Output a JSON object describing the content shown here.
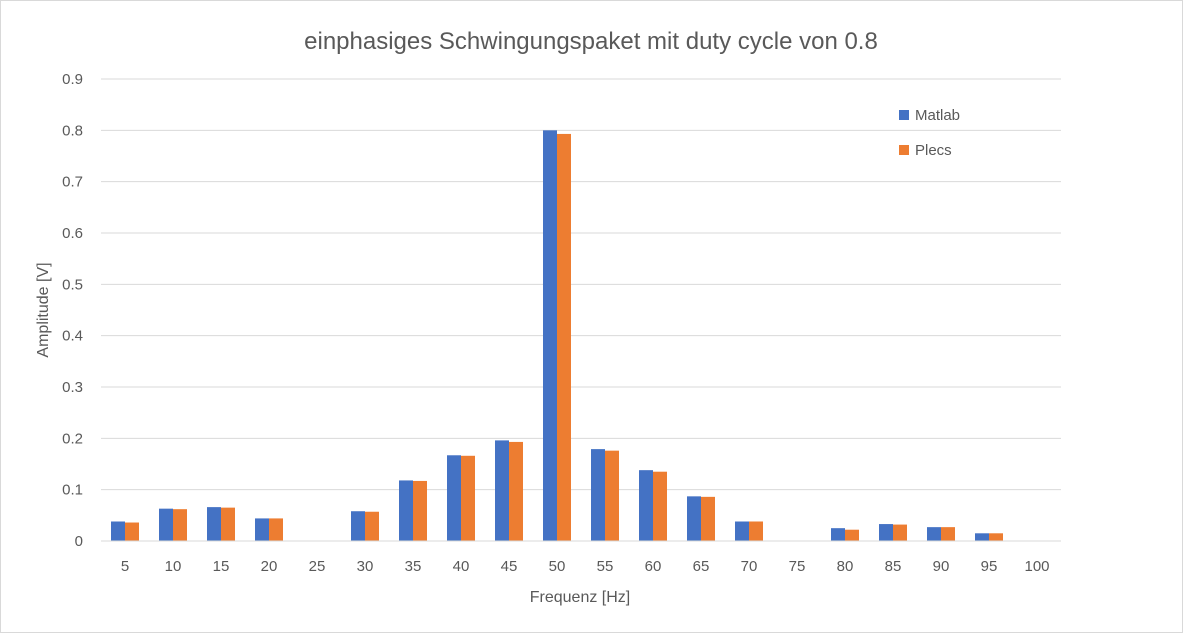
{
  "chart_data": {
    "type": "bar",
    "title": "einphasiges Schwingungspaket mit duty cycle von 0.8",
    "xlabel": "Frequenz [Hz]",
    "ylabel": "Amplitude [V]",
    "ylim": [
      0,
      0.9
    ],
    "yticks": [
      "0",
      "0.1",
      "0.2",
      "0.3",
      "0.4",
      "0.5",
      "0.6",
      "0.7",
      "0.8",
      "0.9"
    ],
    "grid": true,
    "legend_position": "top-right",
    "categories": [
      "5",
      "10",
      "15",
      "20",
      "25",
      "30",
      "35",
      "40",
      "45",
      "50",
      "55",
      "60",
      "65",
      "70",
      "75",
      "80",
      "85",
      "90",
      "95",
      "100"
    ],
    "series": [
      {
        "name": "Matlab",
        "color": "#4472c4",
        "values": [
          0.038,
          0.063,
          0.066,
          0.044,
          0,
          0.058,
          0.118,
          0.167,
          0.196,
          0.8,
          0.179,
          0.138,
          0.087,
          0.038,
          0,
          0.025,
          0.033,
          0.027,
          0.015,
          0
        ]
      },
      {
        "name": "Plecs",
        "color": "#ed7d31",
        "values": [
          0.036,
          0.062,
          0.065,
          0.044,
          0,
          0.057,
          0.117,
          0.166,
          0.193,
          0.793,
          0.176,
          0.135,
          0.086,
          0.038,
          0,
          0.022,
          0.032,
          0.027,
          0.015,
          0
        ]
      }
    ]
  }
}
